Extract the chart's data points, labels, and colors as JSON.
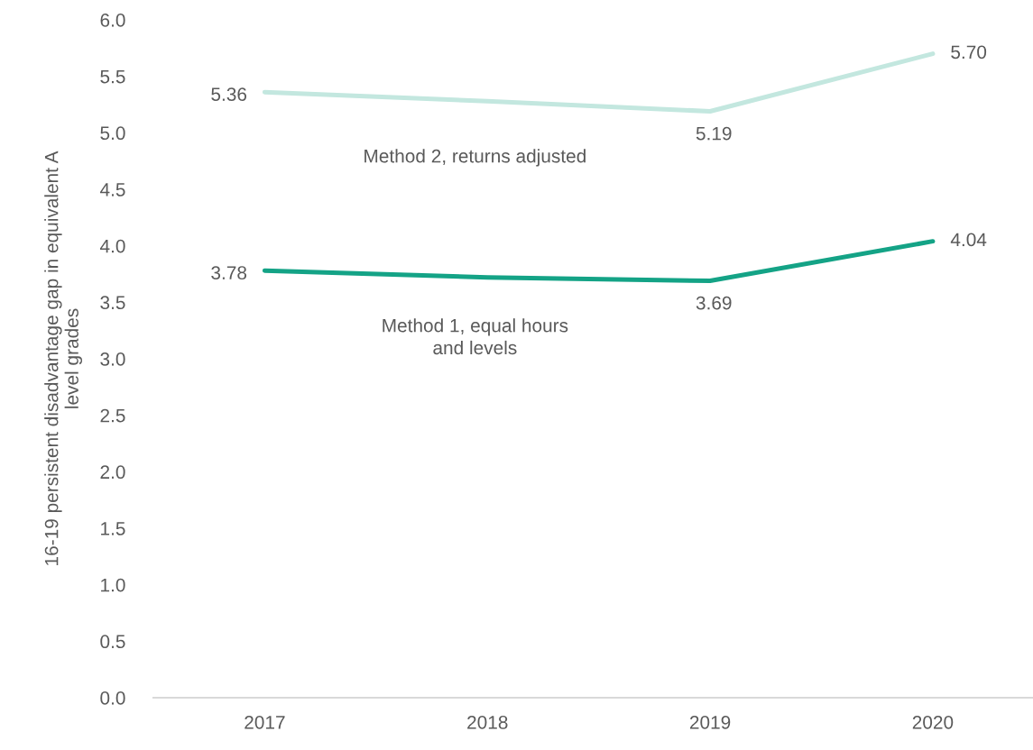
{
  "chart_data": {
    "type": "line",
    "ylabel": "16-19 persistent disadvantage gap in equivalent A\nlevel grades",
    "categories": [
      "2017",
      "2018",
      "2019",
      "2020"
    ],
    "series": [
      {
        "name": "Method 2, returns adjusted",
        "color": "#c3e7df",
        "values": [
          5.36,
          5.28,
          5.19,
          5.7
        ],
        "value_labels": [
          "5.36",
          null,
          "5.19",
          "5.70"
        ]
      },
      {
        "name": "Method 1, equal hours\nand levels",
        "color": "#14a386",
        "values": [
          3.78,
          3.72,
          3.69,
          4.04
        ],
        "value_labels": [
          "3.78",
          null,
          "3.69",
          "4.04"
        ]
      }
    ],
    "ylim": [
      0,
      6
    ],
    "yticks": [
      {
        "value": 0,
        "label": "0.0"
      },
      {
        "value": 0.5,
        "label": "0.5"
      },
      {
        "value": 1,
        "label": "1.0"
      },
      {
        "value": 1.5,
        "label": "1.5"
      },
      {
        "value": 2,
        "label": "2.0"
      },
      {
        "value": 2.5,
        "label": "2.5"
      },
      {
        "value": 3,
        "label": "3.0"
      },
      {
        "value": 3.5,
        "label": "3.5"
      },
      {
        "value": 4,
        "label": "4.0"
      },
      {
        "value": 4.5,
        "label": "4.5"
      },
      {
        "value": 5,
        "label": "5.0"
      },
      {
        "value": 5.5,
        "label": "5.5"
      },
      {
        "value": 6,
        "label": "6.0"
      }
    ],
    "grid": false,
    "legend": false,
    "marker": "none",
    "line_style": "solid"
  }
}
